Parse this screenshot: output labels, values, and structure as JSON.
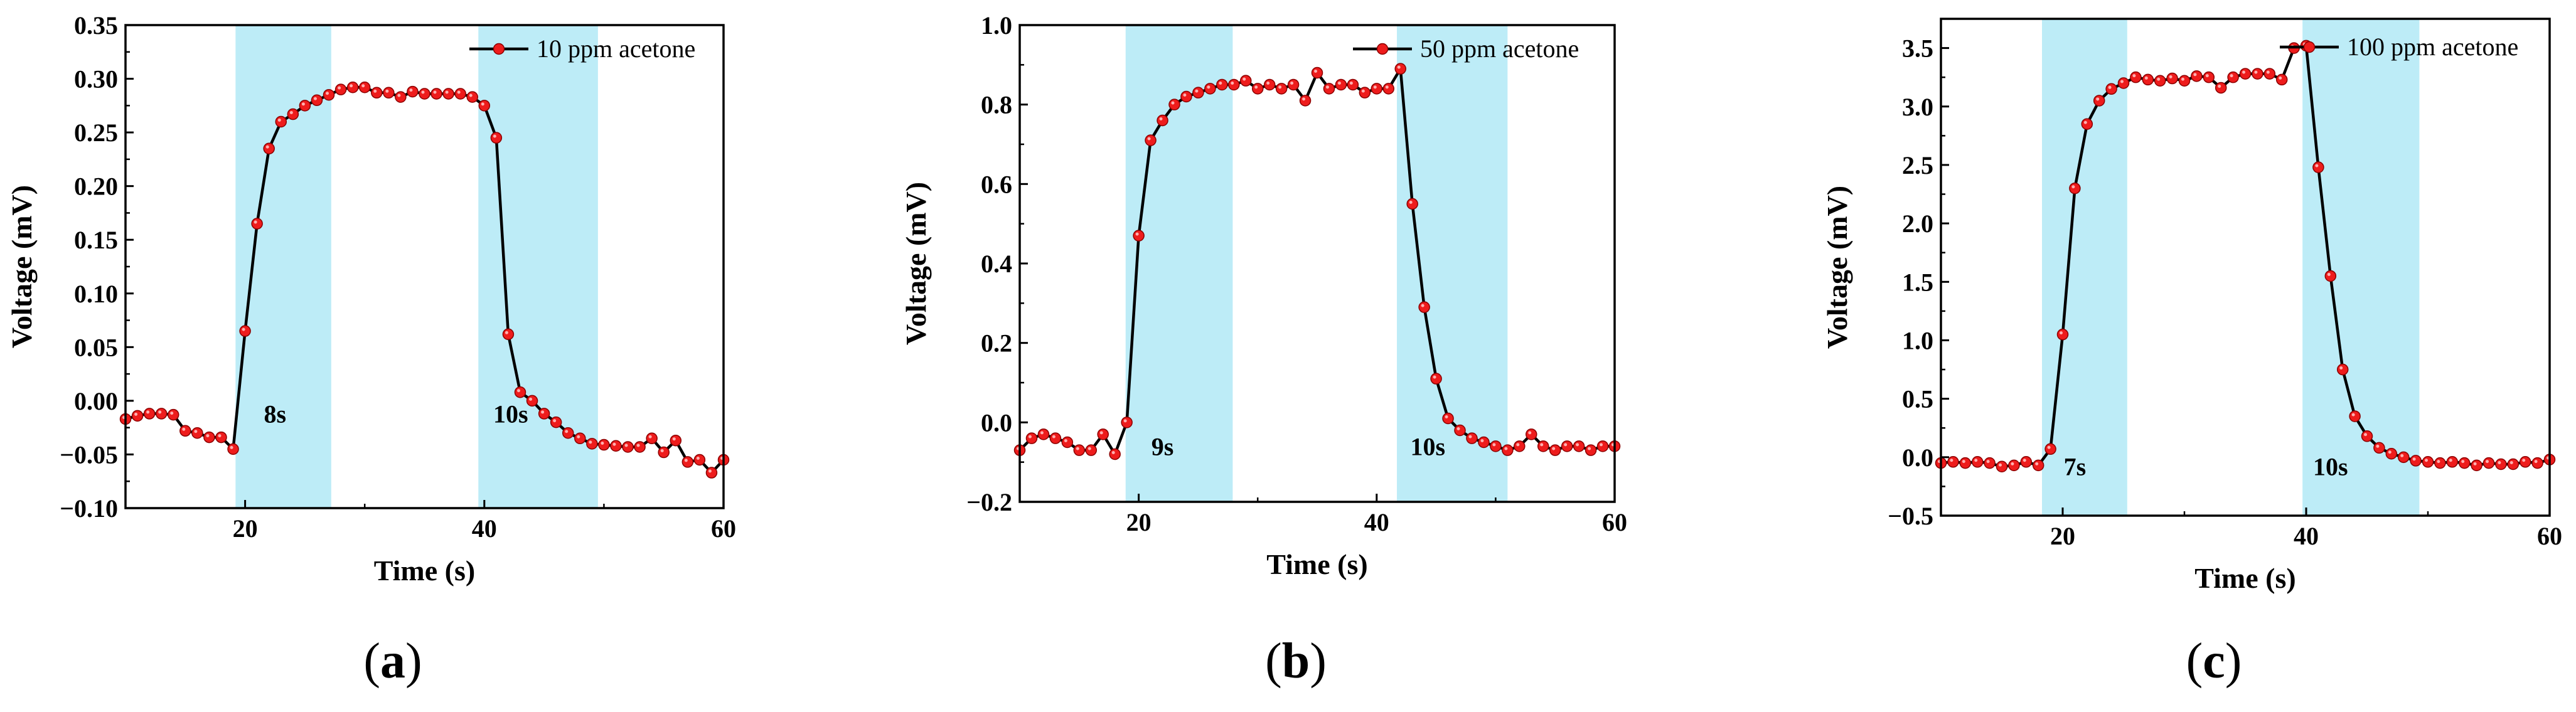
{
  "chart_data": [
    {
      "type": "line",
      "panel_label": "a",
      "xlabel": "Time (s)",
      "ylabel": "Voltage (mV)",
      "xlim": [
        10,
        60
      ],
      "ylim": [
        -0.1,
        0.35
      ],
      "xticks": [
        "20",
        "40",
        "60"
      ],
      "xtick_values": [
        20,
        40,
        60
      ],
      "yticks": [
        "−0.10",
        "−0.05",
        "0.00",
        "0.05",
        "0.10",
        "0.15",
        "0.20",
        "0.25",
        "0.30",
        "0.35"
      ],
      "ytick_values": [
        -0.1,
        -0.05,
        0.0,
        0.05,
        0.1,
        0.15,
        0.2,
        0.25,
        0.3,
        0.35
      ],
      "legend": {
        "label": "10 ppm acetone",
        "position": "top-right"
      },
      "shaded_regions": [
        [
          19.2,
          27.2
        ],
        [
          39.5,
          49.5
        ]
      ],
      "annotations": [
        {
          "text": "8s",
          "x": 22.5,
          "y": -0.012
        },
        {
          "text": "10s",
          "x": 42.2,
          "y": -0.012
        }
      ],
      "series": [
        {
          "name": "10 ppm acetone",
          "x": [
            10,
            11,
            12,
            13,
            14,
            15,
            16,
            17,
            18,
            19,
            20,
            21,
            22,
            23,
            24,
            25,
            26,
            27,
            28,
            29,
            30,
            31,
            32,
            33,
            34,
            35,
            36,
            37,
            38,
            39,
            40,
            41,
            42,
            43,
            44,
            45,
            46,
            47,
            48,
            49,
            50,
            51,
            52,
            53,
            54,
            55,
            56,
            57,
            58,
            59,
            60
          ],
          "y": [
            -0.017,
            -0.014,
            -0.012,
            -0.012,
            -0.013,
            -0.028,
            -0.03,
            -0.034,
            -0.034,
            -0.045,
            0.065,
            0.165,
            0.235,
            0.26,
            0.267,
            0.275,
            0.28,
            0.285,
            0.29,
            0.292,
            0.292,
            0.287,
            0.287,
            0.283,
            0.288,
            0.286,
            0.286,
            0.286,
            0.286,
            0.283,
            0.275,
            0.245,
            0.062,
            0.008,
            0.0,
            -0.012,
            -0.02,
            -0.03,
            -0.035,
            -0.04,
            -0.041,
            -0.042,
            -0.043,
            -0.043,
            -0.035,
            -0.048,
            -0.037,
            -0.057,
            -0.055,
            -0.067,
            -0.055
          ]
        }
      ]
    },
    {
      "type": "line",
      "panel_label": "b",
      "xlabel": "Time (s)",
      "ylabel": "Voltage (mV)",
      "xlim": [
        10,
        60
      ],
      "ylim": [
        -0.2,
        1.0
      ],
      "xticks": [
        "20",
        "40",
        "60"
      ],
      "xtick_values": [
        20,
        40,
        60
      ],
      "yticks": [
        "−0.2",
        "0.0",
        "0.2",
        "0.4",
        "0.6",
        "0.8",
        "1.0"
      ],
      "ytick_values": [
        -0.2,
        0.0,
        0.2,
        0.4,
        0.6,
        0.8,
        1.0
      ],
      "legend": {
        "label": "50 ppm acetone",
        "position": "top-right"
      },
      "shaded_regions": [
        [
          18.9,
          27.9
        ],
        [
          41.7,
          51.0
        ]
      ],
      "annotations": [
        {
          "text": "9s",
          "x": 22.0,
          "y": -0.06
        },
        {
          "text": "10s",
          "x": 44.3,
          "y": -0.06
        }
      ],
      "series": [
        {
          "name": "50 ppm acetone",
          "x": [
            10,
            11,
            12,
            13,
            14,
            15,
            16,
            17,
            18,
            19,
            20,
            21,
            22,
            23,
            24,
            25,
            26,
            27,
            28,
            29,
            30,
            31,
            32,
            33,
            34,
            35,
            36,
            37,
            38,
            39,
            40,
            41,
            42,
            43,
            44,
            45,
            46,
            47,
            48,
            49,
            50,
            51,
            52,
            53,
            54,
            55,
            56,
            57,
            58,
            59,
            60
          ],
          "y": [
            -0.07,
            -0.04,
            -0.03,
            -0.04,
            -0.05,
            -0.07,
            -0.07,
            -0.03,
            -0.08,
            0.0,
            0.47,
            0.71,
            0.76,
            0.8,
            0.82,
            0.83,
            0.84,
            0.85,
            0.85,
            0.86,
            0.84,
            0.85,
            0.84,
            0.85,
            0.81,
            0.88,
            0.84,
            0.85,
            0.85,
            0.83,
            0.84,
            0.84,
            0.89,
            0.55,
            0.29,
            0.11,
            0.01,
            -0.02,
            -0.04,
            -0.05,
            -0.06,
            -0.07,
            -0.06,
            -0.03,
            -0.06,
            -0.07,
            -0.06,
            -0.06,
            -0.07,
            -0.06,
            -0.06
          ]
        }
      ]
    },
    {
      "type": "line",
      "panel_label": "c",
      "xlabel": "Time (s)",
      "ylabel": "Voltage (mV)",
      "xlim": [
        10,
        60
      ],
      "ylim": [
        -0.5,
        3.75
      ],
      "xticks": [
        "20",
        "40",
        "60"
      ],
      "xtick_values": [
        20,
        40,
        60
      ],
      "yticks": [
        "−0.5",
        "0.0",
        "0.5",
        "1.0",
        "1.5",
        "2.0",
        "2.5",
        "3.0",
        "3.5"
      ],
      "ytick_values": [
        -0.5,
        0.0,
        0.5,
        1.0,
        1.5,
        2.0,
        2.5,
        3.0,
        3.5
      ],
      "legend": {
        "label": "100 ppm acetone",
        "position": "top-right"
      },
      "shaded_regions": [
        [
          18.3,
          25.3
        ],
        [
          39.7,
          49.3
        ]
      ],
      "annotations": [
        {
          "text": "7s",
          "x": 21.0,
          "y": -0.08
        },
        {
          "text": "10s",
          "x": 42.0,
          "y": -0.08
        }
      ],
      "series": [
        {
          "name": "100 ppm acetone",
          "x": [
            10,
            11,
            12,
            13,
            14,
            15,
            16,
            17,
            18,
            19,
            20,
            21,
            22,
            23,
            24,
            25,
            26,
            27,
            28,
            29,
            30,
            31,
            32,
            33,
            34,
            35,
            36,
            37,
            38,
            39,
            40,
            41,
            42,
            43,
            44,
            45,
            46,
            47,
            48,
            49,
            50,
            51,
            52,
            53,
            54,
            55,
            56,
            57,
            58,
            59,
            60
          ],
          "y": [
            -0.05,
            -0.04,
            -0.05,
            -0.04,
            -0.05,
            -0.08,
            -0.07,
            -0.04,
            -0.07,
            0.07,
            1.05,
            2.3,
            2.85,
            3.05,
            3.15,
            3.2,
            3.25,
            3.23,
            3.22,
            3.24,
            3.22,
            3.26,
            3.25,
            3.16,
            3.25,
            3.28,
            3.28,
            3.28,
            3.23,
            3.5,
            3.52,
            2.48,
            1.55,
            0.75,
            0.35,
            0.18,
            0.08,
            0.03,
            0.0,
            -0.03,
            -0.04,
            -0.05,
            -0.04,
            -0.05,
            -0.07,
            -0.05,
            -0.06,
            -0.06,
            -0.04,
            -0.05,
            -0.02
          ]
        }
      ]
    }
  ],
  "colors": {
    "shade": "#bdecf7",
    "line": "#000000",
    "marker_fill": "#ee1c1c",
    "marker_stroke": "#8b0000"
  }
}
